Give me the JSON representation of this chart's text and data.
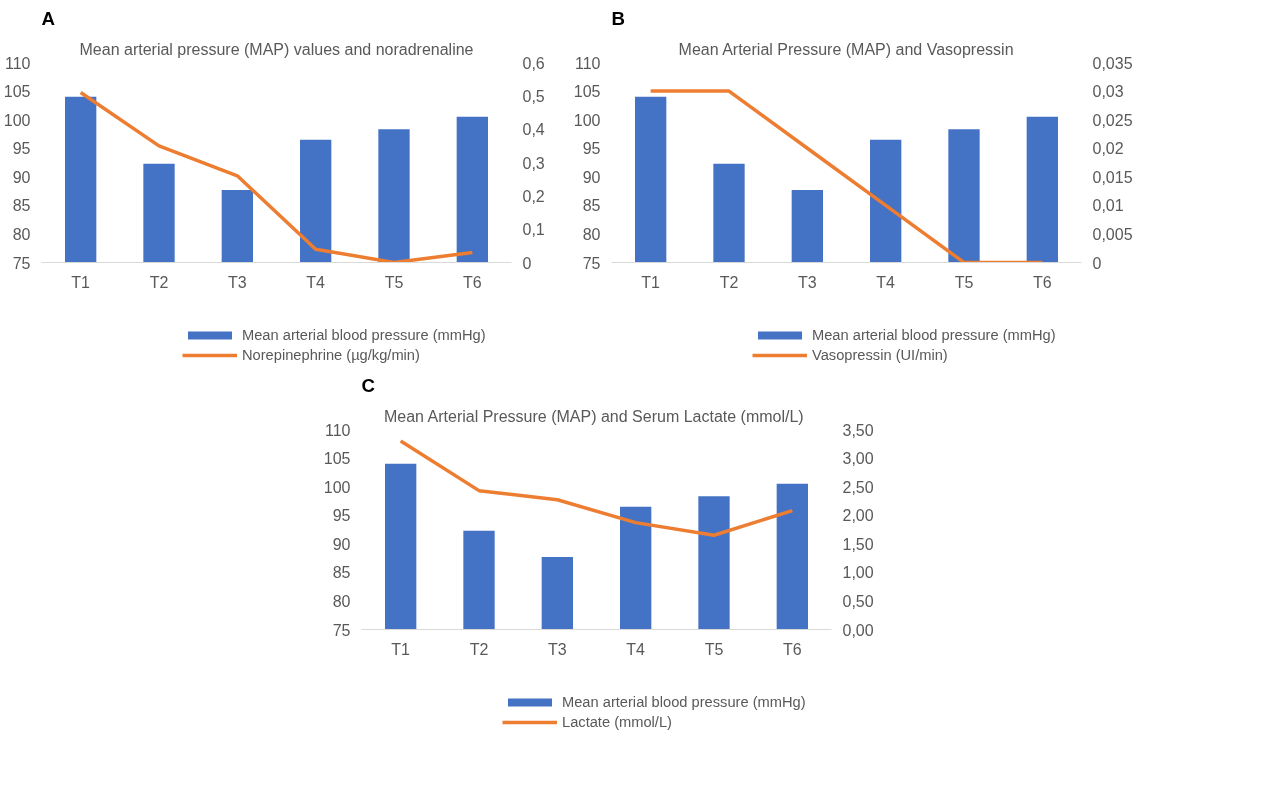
{
  "chart_data": [
    {
      "type": "bar",
      "title": "Mean arterial pressure (MAP) values and noradrenaline",
      "annotations": [
        "A"
      ],
      "categories": [
        "T1",
        "T2",
        "T3",
        "T4",
        "T5",
        "T6"
      ],
      "series": [
        {
          "name": "Mean arterial blood pressure (mmHg)",
          "color": "#4472c4",
          "values": [
            104,
            92.3,
            87.7,
            96.5,
            98.3,
            100.5
          ]
        },
        {
          "type": "line",
          "axis": "y2",
          "name": "Norepinephrine (µg/kg/min)",
          "color": "#ed7d31",
          "values": [
            0.51,
            0.35,
            0.26,
            0.04,
            0,
            0.03
          ]
        }
      ],
      "ylim": [
        75,
        110
      ],
      "yticks": [
        75,
        80,
        85,
        90,
        95,
        100,
        105,
        110
      ],
      "y2lim": [
        0,
        0.6
      ],
      "y2ticks": [
        0,
        {
          "value": 0.1,
          "label": "0,1"
        },
        {
          "value": 0.2,
          "label": "0,2"
        },
        {
          "value": 0.3,
          "label": "0,3"
        },
        {
          "value": 0.4,
          "label": "0,4"
        },
        {
          "value": 0.5,
          "label": "0,5"
        },
        {
          "value": 0.6,
          "label": "0,6"
        }
      ],
      "legend": "bottom"
    },
    {
      "type": "bar",
      "title": "Mean Arterial Pressure (MAP) and Vasopressin",
      "annotations": [
        "B"
      ],
      "categories": [
        "T1",
        "T2",
        "T3",
        "T4",
        "T5",
        "T6"
      ],
      "series": [
        {
          "name": "Mean arterial blood pressure (mmHg)",
          "color": "#4472c4",
          "values": [
            104,
            92.3,
            87.7,
            96.5,
            98.3,
            100.5
          ]
        },
        {
          "type": "line",
          "axis": "y2",
          "name": "Vasopressin (UI/min)",
          "color": "#ed7d31",
          "values": [
            0.03,
            0.03,
            0.02,
            0.01,
            0,
            0
          ]
        }
      ],
      "ylim": [
        75,
        110
      ],
      "yticks": [
        75,
        80,
        85,
        90,
        95,
        100,
        105,
        110
      ],
      "y2lim": [
        0,
        0.035
      ],
      "y2ticks": [
        0,
        {
          "value": 0.005,
          "label": "0,005"
        },
        {
          "value": 0.01,
          "label": "0,01"
        },
        {
          "value": 0.015,
          "label": "0,015"
        },
        {
          "value": 0.02,
          "label": "0,02"
        },
        {
          "value": 0.025,
          "label": "0,025"
        },
        {
          "value": 0.03,
          "label": "0,03"
        },
        {
          "value": 0.035,
          "label": "0,035"
        }
      ],
      "legend": "bottom"
    },
    {
      "type": "bar",
      "title": "Mean Arterial Pressure (MAP) and Serum Lactate  (mmol/L)",
      "annotations": [
        "C"
      ],
      "categories": [
        "T1",
        "T2",
        "T3",
        "T4",
        "T5",
        "T6"
      ],
      "series": [
        {
          "name": "Mean arterial blood pressure (mmHg)",
          "color": "#4472c4",
          "values": [
            104,
            92.3,
            87.7,
            96.5,
            98.3,
            100.5
          ]
        },
        {
          "type": "line",
          "axis": "y2",
          "name": "Lactate (mmol/L)",
          "color": "#ed7d31",
          "values": [
            3.3,
            2.43,
            2.27,
            1.87,
            1.65,
            2.08
          ]
        }
      ],
      "ylim": [
        75,
        110
      ],
      "yticks": [
        75,
        80,
        85,
        90,
        95,
        100,
        105,
        110
      ],
      "y2lim": [
        0,
        3.5
      ],
      "y2ticks": [
        {
          "value": 0,
          "label": "0,00"
        },
        {
          "value": 0.5,
          "label": "0,50"
        },
        {
          "value": 1,
          "label": "1,00"
        },
        {
          "value": 1.5,
          "label": "1,50"
        },
        {
          "value": 2,
          "label": "2,00"
        },
        {
          "value": 2.5,
          "label": "2,50"
        },
        {
          "value": 3,
          "label": "3,00"
        },
        {
          "value": 3.5,
          "label": "3,50"
        }
      ],
      "legend": "bottom"
    }
  ]
}
